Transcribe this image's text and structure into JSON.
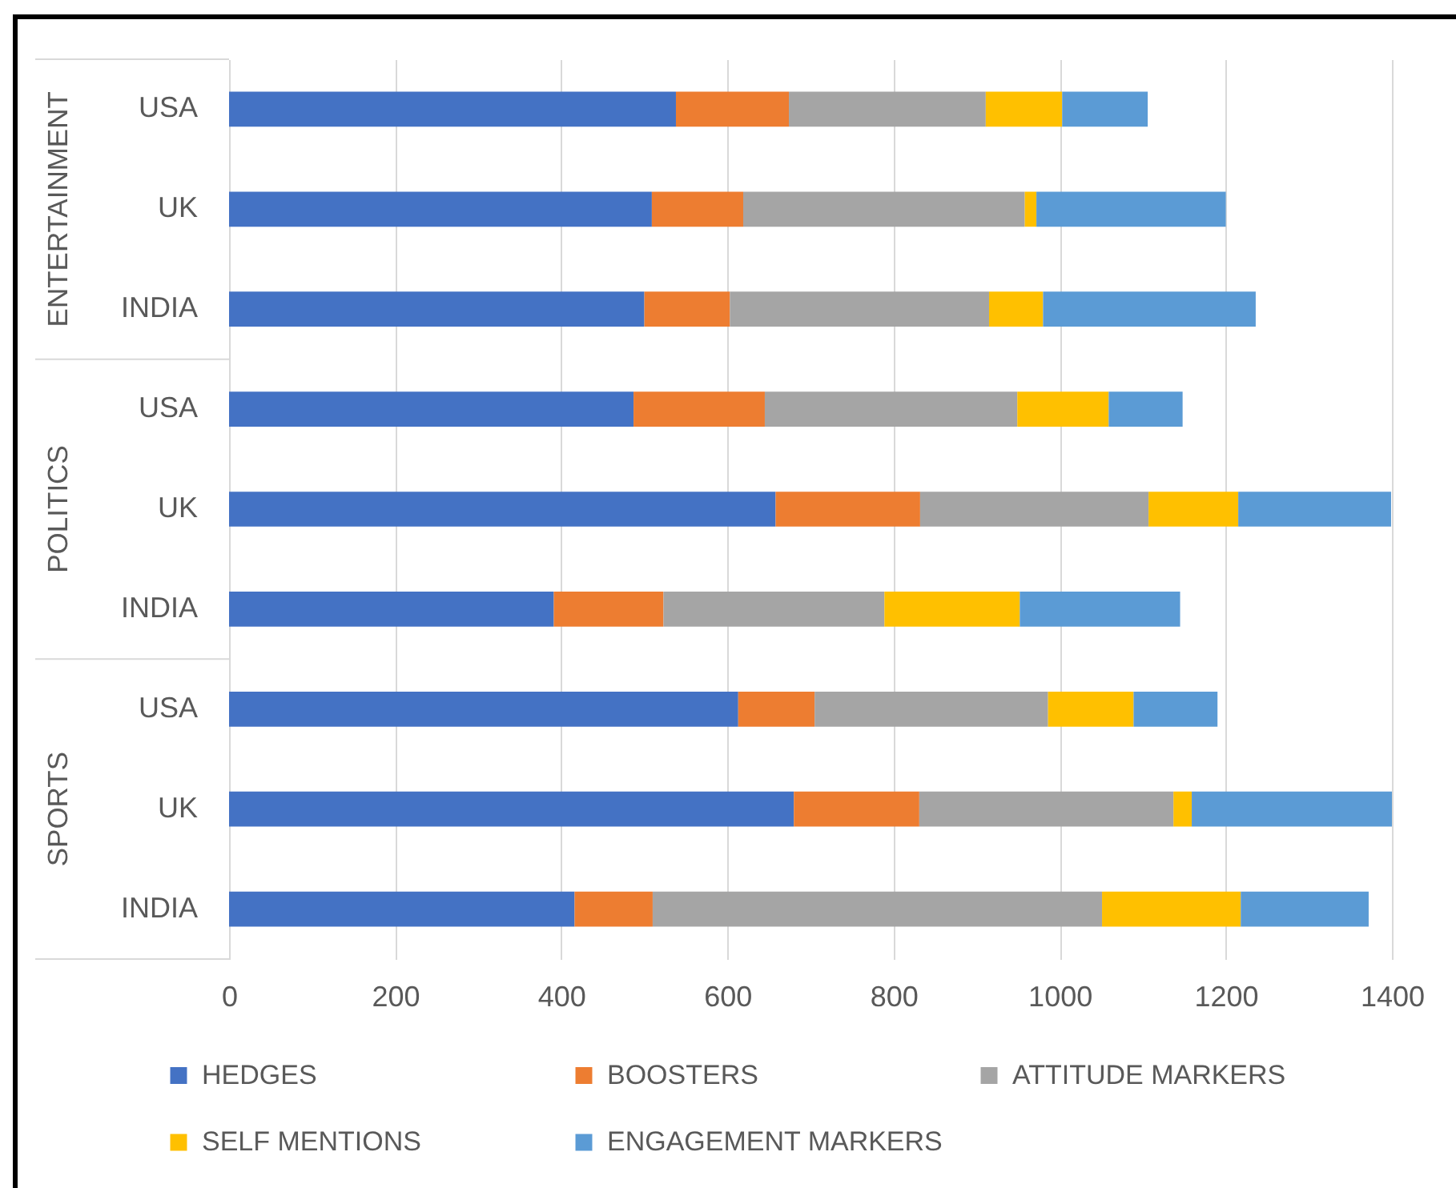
{
  "chart_data": {
    "type": "bar",
    "orientation": "horizontal",
    "stacked": true,
    "categories": [
      "USA",
      "UK",
      "INDIA",
      "USA",
      "UK",
      "INDIA",
      "USA",
      "UK",
      "INDIA"
    ],
    "series": [
      {
        "name": "HEDGES",
        "color": "#4472c4",
        "values": [
          538,
          509,
          500,
          487,
          658,
          391,
          613,
          680,
          416
        ]
      },
      {
        "name": "BOOSTERS",
        "color": "#ed7d31",
        "values": [
          136,
          110,
          103,
          158,
          174,
          132,
          92,
          151,
          94
        ]
      },
      {
        "name": "ATTITUDE MARKERS",
        "color": "#a5a5a5",
        "values": [
          237,
          339,
          312,
          304,
          275,
          266,
          281,
          306,
          541
        ]
      },
      {
        "name": "SELF MENTIONS",
        "color": "#ffc000",
        "values": [
          92,
          14,
          65,
          110,
          108,
          163,
          103,
          22,
          167
        ]
      },
      {
        "name": "ENGAGEMENT MARKERS",
        "color": "#5b9bd5",
        "values": [
          103,
          228,
          256,
          89,
          184,
          193,
          101,
          241,
          154
        ]
      }
    ],
    "xlim": [
      0,
      1400
    ],
    "xticks": [
      0,
      200,
      400,
      600,
      800,
      1000,
      1200,
      1400
    ],
    "grid": "x",
    "legend": "bottom",
    "annotations": [
      "ENTERTAINMENT",
      "POLITICS",
      "SPORTS"
    ]
  }
}
